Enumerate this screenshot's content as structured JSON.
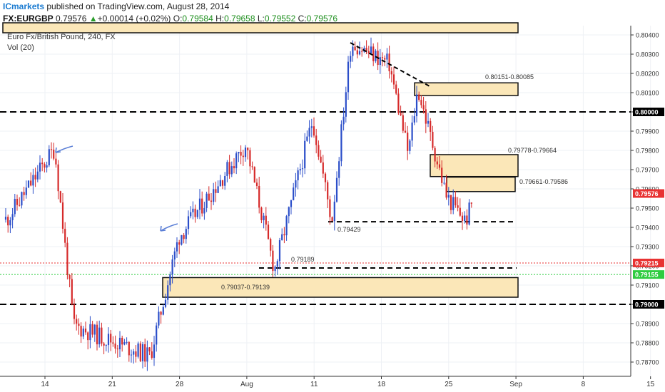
{
  "header": {
    "brand": "ICmarkets",
    "published": "published on TradingView.com, August 28, 2014",
    "symbol": "FX:EURGBP",
    "last": "0.79576",
    "change_arrow": "▲",
    "change": "+0.00014 (+0.02%)",
    "o_label": "O:",
    "o_value": "0.79584",
    "h_label": "H:",
    "h_value": "0.79658",
    "l_label": "L:",
    "l_value": "0.79552",
    "c_label": "C:",
    "c_value": "0.79576"
  },
  "overlay": {
    "title": "Euro Fx/British Pound, 240, FX",
    "volume": "Vol (20)"
  },
  "colors": {
    "up": "#2b4ec9",
    "down": "#d62a2a",
    "zone_fill": "#fbe7b8",
    "zone_stroke": "#111111",
    "red_line": "#e83333",
    "green_line": "#2ecc40",
    "arrow": "#5a7ed6"
  },
  "chart_data": {
    "type": "candlestick",
    "x_ticks": [
      "14",
      "21",
      "28",
      "Aug",
      "11",
      "18",
      "25",
      "Sep",
      "8",
      "15"
    ],
    "ylim": [
      0.7865,
      0.8045
    ],
    "y_ticks": [
      "0.78700",
      "0.78800",
      "0.78900",
      "0.79000",
      "0.79100",
      "0.79200",
      "0.79300",
      "0.79400",
      "0.79500",
      "0.79600",
      "0.79700",
      "0.79800",
      "0.79900",
      "0.80000",
      "0.80100",
      "0.80200",
      "0.80300",
      "0.80400"
    ],
    "horizontal_levels": [
      {
        "value": 0.8,
        "label": "0.80000",
        "style": "black-dashed"
      },
      {
        "value": 0.79,
        "label": "0.79000",
        "style": "black-dashed"
      },
      {
        "value": 0.79215,
        "label": "0.79215",
        "style": "red-dotted"
      },
      {
        "value": 0.79155,
        "label": "0.79155",
        "style": "green-dotted"
      },
      {
        "value": 0.79576,
        "label": "0.79576",
        "style": "price-tag"
      }
    ],
    "zones": [
      {
        "label": "0.80151-0.80085",
        "from": 0.80085,
        "to": 0.80151
      },
      {
        "label": "0.79778-0.79664",
        "from": 0.79664,
        "to": 0.79778
      },
      {
        "label": "0.79661-0.79586",
        "from": 0.79586,
        "to": 0.79661
      },
      {
        "label": "0.79037-0.79139",
        "from": 0.79037,
        "to": 0.79139
      }
    ],
    "annotations": [
      "0.79429",
      "0.79189"
    ],
    "key_points": [
      {
        "x": "Jul 10",
        "close": 0.7944
      },
      {
        "x": "Jul 15",
        "high": 0.7981
      },
      {
        "x": "Jul 17",
        "low": 0.7889
      },
      {
        "x": "Jul 25",
        "low": 0.7873
      },
      {
        "x": "Jul 28",
        "high": 0.7935
      },
      {
        "x": "Aug 4",
        "high": 0.7983
      },
      {
        "x": "Aug 7",
        "low": 0.7918
      },
      {
        "x": "Aug 11",
        "high": 0.7996
      },
      {
        "x": "Aug 13",
        "low": 0.7943
      },
      {
        "x": "Aug 15",
        "high": 0.8036
      },
      {
        "x": "Aug 19",
        "high": 0.8025
      },
      {
        "x": "Aug 21",
        "low": 0.7978
      },
      {
        "x": "Aug 22",
        "high": 0.8012
      },
      {
        "x": "Aug 25",
        "low": 0.7956
      },
      {
        "x": "Aug 27",
        "low": 0.7943
      },
      {
        "x": "Aug 28",
        "close": 0.79576
      }
    ]
  }
}
